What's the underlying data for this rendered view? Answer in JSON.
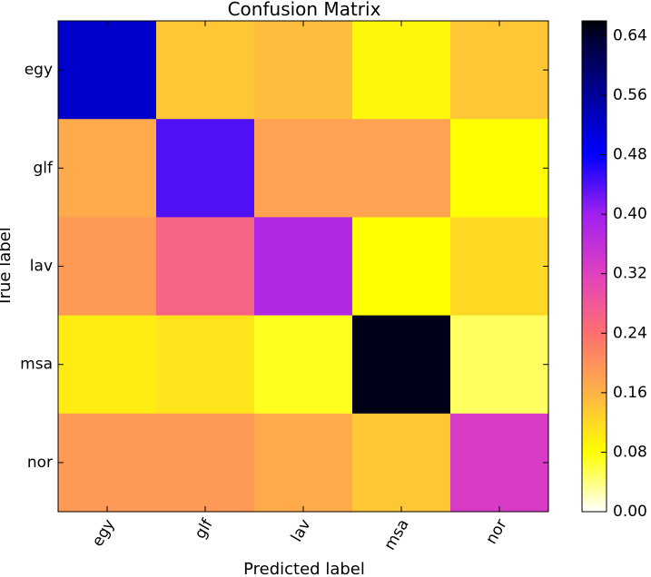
{
  "chart_data": {
    "type": "heatmap",
    "title": "Confusion Matrix",
    "xlabel": "Predicted label",
    "ylabel": "True label",
    "x_categories": [
      "egy",
      "glf",
      "lav",
      "msa",
      "nor"
    ],
    "y_categories": [
      "egy",
      "glf",
      "lav",
      "msa",
      "nor"
    ],
    "values": [
      [
        0.52,
        0.14,
        0.15,
        0.09,
        0.14
      ],
      [
        0.17,
        0.44,
        0.18,
        0.18,
        0.08
      ],
      [
        0.19,
        0.26,
        0.38,
        0.08,
        0.12
      ],
      [
        0.1,
        0.11,
        0.07,
        0.65,
        0.05
      ],
      [
        0.19,
        0.19,
        0.17,
        0.14,
        0.33
      ]
    ],
    "colorbar": {
      "range": [
        0.0,
        0.66
      ],
      "ticks": [
        "0.00",
        "0.08",
        "0.16",
        "0.24",
        "0.32",
        "0.40",
        "0.48",
        "0.56",
        "0.64"
      ],
      "tick_values": [
        0.0,
        0.08,
        0.16,
        0.24,
        0.32,
        0.4,
        0.48,
        0.56,
        0.64
      ]
    },
    "colormap": {
      "stops": [
        0.0,
        0.08,
        0.16,
        0.24,
        0.32,
        0.4,
        0.48,
        0.56,
        0.64,
        0.66
      ],
      "colors": [
        "#ffffff",
        "#ffff00",
        "#ffb347",
        "#ff6f6f",
        "#e040c0",
        "#a020f0",
        "#0000ff",
        "#00009a",
        "#000030",
        "#000000"
      ]
    },
    "grid": false
  }
}
